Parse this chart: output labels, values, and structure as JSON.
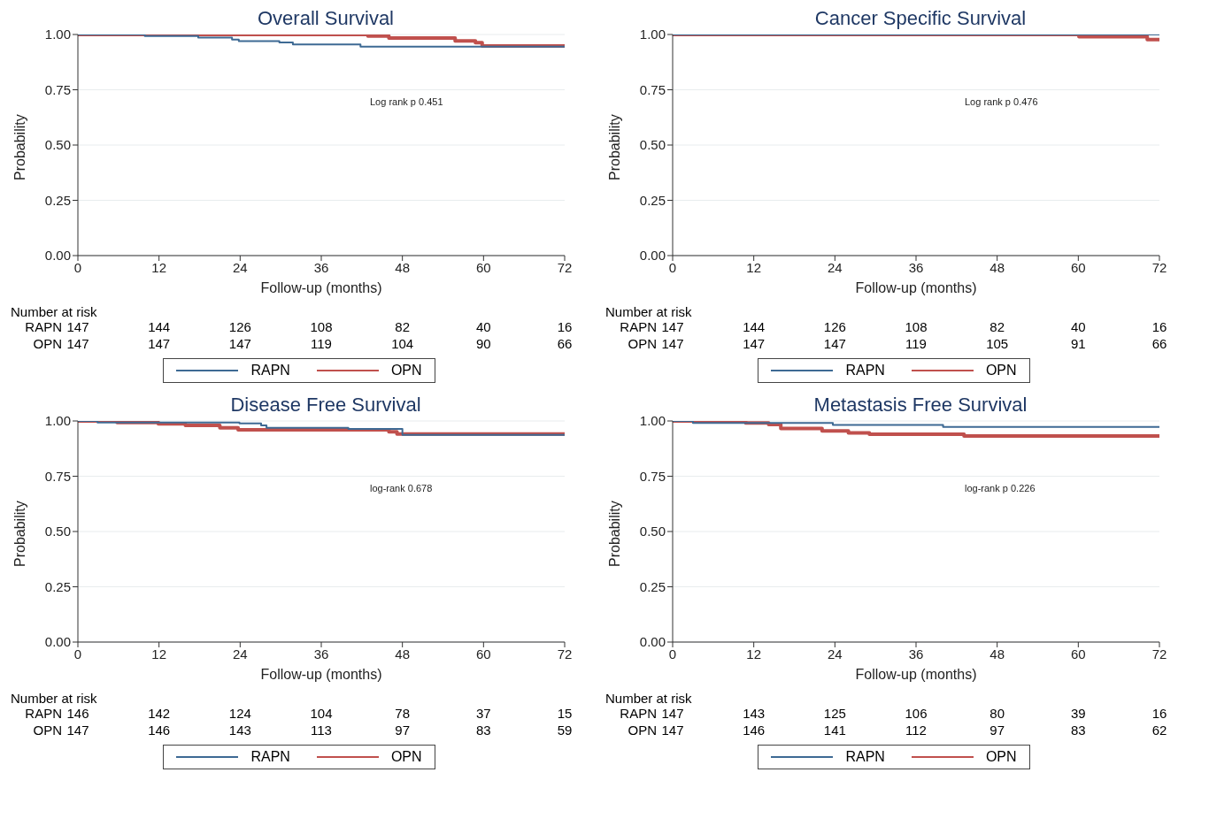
{
  "chart_data": [
    {
      "type": "step",
      "title": "Overall Survival",
      "xlabel": "Follow-up (months)",
      "ylabel": "Probability",
      "xlim": [
        0,
        72
      ],
      "xticks": [
        0,
        12,
        24,
        36,
        48,
        60,
        72
      ],
      "ylim": [
        0,
        1
      ],
      "yticks": [
        {
          "value": 0,
          "label": "0.00"
        },
        {
          "value": 0.25,
          "label": "0.25"
        },
        {
          "value": 0.5,
          "label": "0.50"
        },
        {
          "value": 0.75,
          "label": "0.75"
        },
        {
          "value": 1,
          "label": "1.00"
        }
      ],
      "grid": "y",
      "legend": "bottom",
      "line_style": "solid",
      "marker": "none",
      "series": [
        {
          "name": "RAPN",
          "color": "#3e6a94",
          "x": [
            0,
            9.9,
            17.8,
            22.8,
            23.8,
            29.8,
            31.8,
            41.8,
            72
          ],
          "values": [
            1,
            0.993,
            0.986,
            0.977,
            0.97,
            0.964,
            0.955,
            0.945,
            0.945
          ]
        },
        {
          "name": "OPN",
          "color": "#c0504d",
          "x": [
            0,
            42.9,
            46,
            55.8,
            58.8,
            59.8,
            72
          ],
          "values": [
            1,
            0.993,
            0.984,
            0.971,
            0.963,
            0.948,
            0.948
          ]
        }
      ],
      "annotations": [
        "Log rank p 0.451",
        "Number at risk",
        "RAPN 147 144 126 108 82 40 16",
        "OPN 147 147 147 119 104 90 66"
      ]
    },
    {
      "type": "step",
      "title": "Cancer Specific Survival",
      "xlabel": "Follow-up (months)",
      "ylabel": "Probability",
      "xlim": [
        0,
        72
      ],
      "xticks": [
        0,
        12,
        24,
        36,
        48,
        60,
        72
      ],
      "ylim": [
        0,
        1
      ],
      "yticks": [
        {
          "value": 0,
          "label": "0.00"
        },
        {
          "value": 0.25,
          "label": "0.25"
        },
        {
          "value": 0.5,
          "label": "0.50"
        },
        {
          "value": 0.75,
          "label": "0.75"
        },
        {
          "value": 1,
          "label": "1.00"
        }
      ],
      "grid": "y",
      "legend": "bottom",
      "line_style": "solid",
      "marker": "none",
      "series": [
        {
          "name": "RAPN",
          "color": "#3e6a94",
          "x": [
            0,
            72
          ],
          "values": [
            1,
            1
          ]
        },
        {
          "name": "OPN",
          "color": "#c0504d",
          "x": [
            0,
            60.1,
            70.2,
            72
          ],
          "values": [
            1,
            0.99,
            0.977,
            0.977
          ]
        }
      ],
      "annotations": [
        "Log rank p 0.476",
        "Number at risk",
        "RAPN 147 144 126 108 82 40 16",
        "OPN 147 147 147 119 105 91 66"
      ]
    },
    {
      "type": "step",
      "title": "Disease Free Survival",
      "xlabel": "Follow-up (months)",
      "ylabel": "Probability",
      "xlim": [
        0,
        72
      ],
      "xticks": [
        0,
        12,
        24,
        36,
        48,
        60,
        72
      ],
      "ylim": [
        0,
        1
      ],
      "yticks": [
        {
          "value": 0,
          "label": "0.00"
        },
        {
          "value": 0.25,
          "label": "0.25"
        },
        {
          "value": 0.5,
          "label": "0.50"
        },
        {
          "value": 0.75,
          "label": "0.75"
        },
        {
          "value": 1,
          "label": "1.00"
        }
      ],
      "grid": "y",
      "legend": "bottom",
      "line_style": "solid",
      "marker": "none",
      "series": [
        {
          "name": "RAPN",
          "color": "#3e6a94",
          "x": [
            0,
            2.9,
            23.9,
            27.1,
            27.9,
            40,
            48,
            72
          ],
          "values": [
            1,
            0.993,
            0.989,
            0.98,
            0.969,
            0.964,
            0.937,
            0.937
          ]
        },
        {
          "name": "OPN",
          "color": "#c0504d",
          "x": [
            0,
            5.8,
            11.9,
            15.9,
            21,
            23.7,
            46,
            47.2,
            72
          ],
          "values": [
            1,
            0.993,
            0.987,
            0.98,
            0.969,
            0.96,
            0.951,
            0.941,
            0.941
          ]
        }
      ],
      "annotations": [
        "log-rank 0.678",
        "Number at risk",
        "RAPN 146 142 124 104 78 37 15",
        "OPN 147 146 143 113 97 83 59"
      ]
    },
    {
      "type": "step",
      "title": "Metastasis Free Survival",
      "xlabel": "Follow-up (months)",
      "ylabel": "Probability",
      "xlim": [
        0,
        72
      ],
      "xticks": [
        0,
        12,
        24,
        36,
        48,
        60,
        72
      ],
      "ylim": [
        0,
        1
      ],
      "yticks": [
        {
          "value": 0,
          "label": "0.00"
        },
        {
          "value": 0.25,
          "label": "0.25"
        },
        {
          "value": 0.5,
          "label": "0.50"
        },
        {
          "value": 0.75,
          "label": "0.75"
        },
        {
          "value": 1,
          "label": "1.00"
        }
      ],
      "grid": "y",
      "legend": "bottom",
      "line_style": "solid",
      "marker": "none",
      "series": [
        {
          "name": "RAPN",
          "color": "#3e6a94",
          "x": [
            0,
            3,
            23.7,
            40,
            72
          ],
          "values": [
            1,
            0.991,
            0.982,
            0.973,
            0.973
          ]
        },
        {
          "name": "OPN",
          "color": "#c0504d",
          "x": [
            0,
            10.8,
            14.2,
            16,
            22.1,
            26,
            29.1,
            43.1,
            72
          ],
          "values": [
            1,
            0.991,
            0.984,
            0.966,
            0.955,
            0.946,
            0.94,
            0.932,
            0.932
          ]
        }
      ],
      "annotations": [
        "log-rank p 0.226",
        "Number at risk",
        "RAPN 147 143 125 106 80 39 16",
        "OPN 147 146 141 112 97 83 62"
      ]
    }
  ]
}
